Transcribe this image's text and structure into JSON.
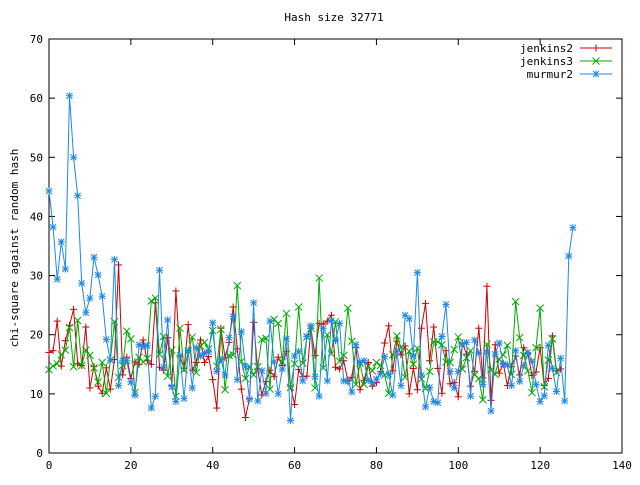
{
  "chart_data": {
    "type": "line",
    "title": "Hash size 32771",
    "xlabel": "",
    "ylabel": "chi-square against random hash",
    "xlim": [
      0,
      140
    ],
    "ylim": [
      0,
      70
    ],
    "xticks": [
      "0",
      "20",
      "40",
      "60",
      "80",
      "100",
      "120",
      "140"
    ],
    "yticks": [
      "0",
      "10",
      "20",
      "30",
      "40",
      "50",
      "60",
      "70"
    ],
    "grid": false,
    "legend_position": "top-right",
    "series": [
      {
        "name": "jenkins2",
        "color": "#cc0000",
        "marker": "plus",
        "values": [
          17,
          17.3,
          22.3,
          14.7,
          19,
          21.6,
          24.3,
          15.1,
          14.8,
          21.3,
          11,
          14.6,
          11.3,
          10.1,
          14.4,
          10.8,
          15.8,
          31.8,
          13.2,
          16.2,
          12.6,
          15.4,
          15,
          19.1,
          15.6,
          15,
          25.4,
          14.5,
          14,
          19.5,
          11.4,
          27.4,
          16.4,
          14.3,
          21.7,
          14,
          15.3,
          19.1,
          15.3,
          16.3,
          12.4,
          7.6,
          21.1,
          16.1,
          18.7,
          24.7,
          17.6,
          10.8,
          6,
          9.2,
          22.1,
          14.2,
          9.8,
          12.1,
          14,
          12.9,
          16.2,
          14.8,
          17.2,
          11.3,
          8.2,
          14.1,
          12.9,
          13,
          21.1,
          16.5,
          21.9,
          21.8,
          22.3,
          23.3,
          14.5,
          14.2,
          15.6,
          12.3,
          12.8,
          17.8,
          10.7,
          12.3,
          15.3,
          11.3,
          11.9,
          13.8,
          18.6,
          21.5,
          13.9,
          18.9,
          16.6,
          18.1,
          10,
          14.3,
          10.7,
          21.1,
          25.3,
          15.6,
          21.3,
          14.3,
          10.1,
          17.3,
          11.7,
          11.9,
          9.5,
          18.6,
          16.7,
          11.3,
          13.8,
          21.1,
          12.7,
          28.2,
          8.9,
          18.3,
          13.5,
          15.1,
          11.4,
          14.6,
          16.4,
          13.2,
          17.8,
          16.8,
          13.1,
          13.7,
          17.8,
          11.4,
          12.6,
          19.8,
          13.9,
          14.2
        ]
      },
      {
        "name": "jenkins3",
        "color": "#00aa00",
        "marker": "cross",
        "values": [
          14.1,
          14.7,
          15.1,
          16.6,
          17.4,
          21.2,
          14.6,
          22.4,
          14.8,
          17.4,
          16.5,
          14.4,
          12,
          15.3,
          10.1,
          15.7,
          22.2,
          12.8,
          14.8,
          20.6,
          19.3,
          10.2,
          16.2,
          15.4,
          16,
          25.7,
          26.2,
          16.7,
          19.7,
          13,
          17.4,
          9.6,
          21.1,
          14.1,
          17.2,
          19.6,
          13.6,
          18.1,
          18.7,
          17.6,
          20.7,
          14.7,
          20.9,
          10.7,
          16.5,
          16.6,
          28.3,
          15.5,
          12.6,
          14.6,
          13.2,
          14.6,
          19.2,
          19.4,
          10.8,
          22.6,
          21.9,
          15.4,
          23.6,
          11.1,
          15.1,
          24.7,
          15.2,
          19.6,
          21.1,
          11,
          29.6,
          14.4,
          20,
          16.8,
          22.2,
          15.5,
          16.5,
          24.5,
          18.9,
          11.6,
          15.2,
          11.6,
          14.7,
          13.9,
          15.3,
          14.8,
          13.2,
          10.1,
          16.6,
          19.8,
          17.9,
          12.8,
          17.2,
          15,
          17.7,
          12.5,
          10.9,
          13.8,
          18.8,
          18.8,
          18.3,
          15.4,
          15.3,
          17.5,
          19.6,
          14.2,
          16.1,
          17.3,
          13.2,
          12.6,
          9,
          18.4,
          14.1,
          13.3,
          15.9,
          16.6,
          18.2,
          13.3,
          25.6,
          19.5,
          16.5,
          13.9,
          10.2,
          17.8,
          24.5,
          11.2,
          15.7,
          19.3,
          13.6
        ]
      },
      {
        "name": "murmur2",
        "color": "#1e88e5",
        "marker": "star",
        "values": [
          44.3,
          38.2,
          29.4,
          35.7,
          31.1,
          60.4,
          50,
          43.5,
          28.7,
          23.7,
          26.2,
          33.1,
          30.1,
          26.5,
          19.2,
          15.7,
          32.7,
          11.4,
          15.6,
          15.6,
          12,
          9.8,
          18.3,
          18,
          18.2,
          7.6,
          9.6,
          30.9,
          14.5,
          22.5,
          11.2,
          8.7,
          16.5,
          9.2,
          17.3,
          11,
          17.8,
          16.4,
          16.9,
          17.1,
          22,
          13.8,
          15.8,
          13.2,
          19.5,
          23.1,
          12.4,
          20.5,
          14.6,
          9.1,
          25.4,
          8.8,
          13.9,
          10.1,
          22.3,
          15.4,
          10,
          14.2,
          19.3,
          5.5,
          16.4,
          17.2,
          12.2,
          19.7,
          21.5,
          12.9,
          9.6,
          21.1,
          12.2,
          22.4,
          19,
          21.9,
          12.2,
          12.1,
          10.3,
          18.3,
          15.3,
          15.6,
          12.3,
          11.8,
          12.5,
          13.4,
          16.3,
          13.3,
          9.8,
          17.2,
          11.4,
          23.3,
          22.7,
          16.4,
          30.5,
          13.2,
          7.8,
          11.1,
          8.7,
          8.5,
          19.7,
          25.1,
          13.8,
          11,
          13.8,
          18.4,
          18.7,
          9.6,
          19.1,
          16.9,
          11.6,
          17.1,
          7.1,
          16.7,
          18.6,
          15,
          14.9,
          11.4,
          17.3,
          12.1,
          14.8,
          17,
          15.5,
          11.6,
          8.7,
          9.7,
          18.2,
          14.3,
          10.4,
          16,
          8.8,
          33.3,
          38.1
        ]
      }
    ]
  }
}
